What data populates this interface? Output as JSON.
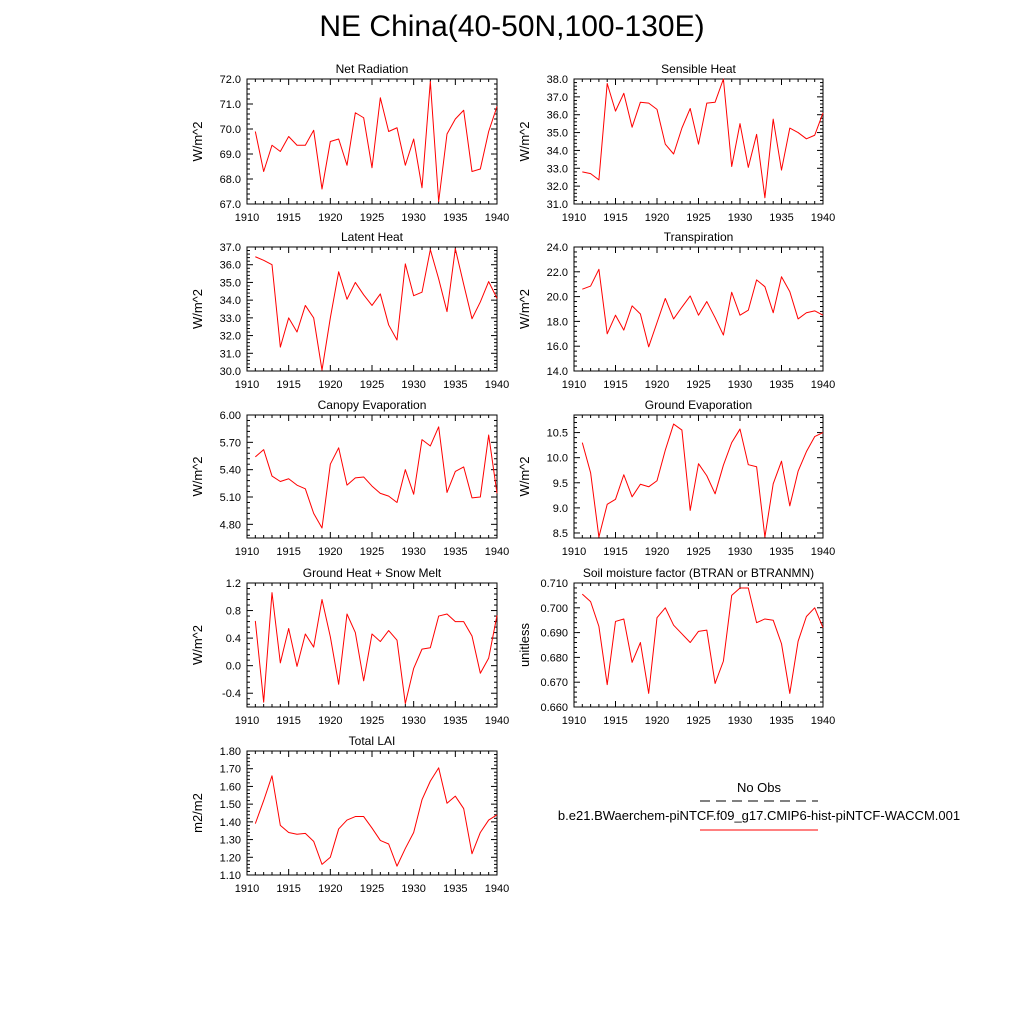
{
  "title": "NE China(40-50N,100-130E)",
  "colors": {
    "series": "#ff0000",
    "obs": "#000000"
  },
  "legend": {
    "obs_label": "No Obs",
    "case_label": "b.e21.BWaerchem-piNTCF.f09_g17.CMIP6-hist-piNTCF-WACCM.001"
  },
  "chart_data": [
    {
      "type": "line",
      "title": "Net Radiation",
      "ylabel": "W/m^2",
      "xlim": [
        1910,
        1940
      ],
      "ylim": [
        67.0,
        72.0
      ],
      "xticks": [
        "1910",
        "1915",
        "1920",
        "1925",
        "1930",
        "1935",
        "1940"
      ],
      "yticks": [
        "67.0",
        "68.0",
        "69.0",
        "70.0",
        "71.0",
        "72.0"
      ],
      "x": [
        1911,
        1912,
        1913,
        1914,
        1915,
        1916,
        1917,
        1918,
        1919,
        1920,
        1921,
        1922,
        1923,
        1924,
        1925,
        1926,
        1927,
        1928,
        1929,
        1930,
        1931,
        1932,
        1933,
        1934,
        1935,
        1936,
        1937,
        1938,
        1939,
        1940
      ],
      "series": [
        {
          "values": [
            69.9,
            68.3,
            69.35,
            69.1,
            69.7,
            69.35,
            69.35,
            69.95,
            67.6,
            69.5,
            69.6,
            68.55,
            70.65,
            70.45,
            68.45,
            71.25,
            69.9,
            70.05,
            68.55,
            69.6,
            67.65,
            71.9,
            67.1,
            69.8,
            70.4,
            70.75,
            68.3,
            68.4,
            69.9,
            70.9
          ]
        }
      ]
    },
    {
      "type": "line",
      "title": "Sensible Heat",
      "ylabel": "W/m^2",
      "xlim": [
        1910,
        1940
      ],
      "ylim": [
        31.0,
        38.0
      ],
      "xticks": [
        "1910",
        "1915",
        "1920",
        "1925",
        "1930",
        "1935",
        "1940"
      ],
      "yticks": [
        "31.0",
        "32.0",
        "33.0",
        "34.0",
        "35.0",
        "36.0",
        "37.0",
        "38.0"
      ],
      "x": [
        1911,
        1912,
        1913,
        1914,
        1915,
        1916,
        1917,
        1918,
        1919,
        1920,
        1921,
        1922,
        1923,
        1924,
        1925,
        1926,
        1927,
        1928,
        1929,
        1930,
        1931,
        1932,
        1933,
        1934,
        1935,
        1936,
        1937,
        1938,
        1939,
        1940
      ],
      "series": [
        {
          "values": [
            32.8,
            32.7,
            32.35,
            37.75,
            36.2,
            37.2,
            35.3,
            36.7,
            36.65,
            36.3,
            34.35,
            33.8,
            35.25,
            36.35,
            34.35,
            36.65,
            36.7,
            38.0,
            33.1,
            35.5,
            33.05,
            34.9,
            31.35,
            35.75,
            32.9,
            35.25,
            35.0,
            34.65,
            34.85,
            36.1
          ]
        }
      ]
    },
    {
      "type": "line",
      "title": "Latent Heat",
      "ylabel": "W/m^2",
      "xlim": [
        1910,
        1940
      ],
      "ylim": [
        30.0,
        37.0
      ],
      "xticks": [
        "1910",
        "1915",
        "1920",
        "1925",
        "1930",
        "1935",
        "1940"
      ],
      "yticks": [
        "30.0",
        "31.0",
        "32.0",
        "33.0",
        "34.0",
        "35.0",
        "36.0",
        "37.0"
      ],
      "x": [
        1911,
        1912,
        1913,
        1914,
        1915,
        1916,
        1917,
        1918,
        1919,
        1920,
        1921,
        1922,
        1923,
        1924,
        1925,
        1926,
        1927,
        1928,
        1929,
        1930,
        1931,
        1932,
        1933,
        1934,
        1935,
        1936,
        1937,
        1938,
        1939,
        1940
      ],
      "series": [
        {
          "values": [
            36.45,
            36.25,
            36.0,
            31.35,
            33.0,
            32.2,
            33.7,
            33.0,
            30.05,
            33.0,
            35.6,
            34.05,
            35.0,
            34.3,
            33.7,
            34.35,
            32.6,
            31.75,
            36.05,
            34.25,
            34.45,
            36.85,
            35.2,
            33.35,
            36.9,
            34.9,
            32.95,
            33.9,
            35.05,
            34.1
          ]
        }
      ]
    },
    {
      "type": "line",
      "title": "Transpiration",
      "ylabel": "W/m^2",
      "xlim": [
        1910,
        1940
      ],
      "ylim": [
        14.0,
        24.0
      ],
      "xticks": [
        "1910",
        "1915",
        "1920",
        "1925",
        "1930",
        "1935",
        "1940"
      ],
      "yticks": [
        "14.0",
        "16.0",
        "18.0",
        "20.0",
        "22.0",
        "24.0"
      ],
      "x": [
        1911,
        1912,
        1913,
        1914,
        1915,
        1916,
        1917,
        1918,
        1919,
        1920,
        1921,
        1922,
        1923,
        1924,
        1925,
        1926,
        1927,
        1928,
        1929,
        1930,
        1931,
        1932,
        1933,
        1934,
        1935,
        1936,
        1937,
        1938,
        1939,
        1940
      ],
      "series": [
        {
          "values": [
            20.6,
            20.85,
            22.2,
            17.0,
            18.5,
            17.3,
            19.25,
            18.6,
            15.95,
            17.9,
            19.85,
            18.2,
            19.15,
            20.05,
            18.5,
            19.6,
            18.3,
            16.9,
            20.35,
            18.5,
            18.9,
            21.35,
            20.8,
            18.7,
            21.6,
            20.4,
            18.2,
            18.7,
            18.85,
            18.5
          ]
        }
      ]
    },
    {
      "type": "line",
      "title": "Canopy Evaporation",
      "ylabel": "W/m^2",
      "xlim": [
        1910,
        1940
      ],
      "ylim": [
        4.65,
        6.0
      ],
      "xticks": [
        "1910",
        "1915",
        "1920",
        "1925",
        "1930",
        "1935",
        "1940"
      ],
      "yticks": [
        "4.80",
        "5.10",
        "5.40",
        "5.70",
        "6.00"
      ],
      "x": [
        1911,
        1912,
        1913,
        1914,
        1915,
        1916,
        1917,
        1918,
        1919,
        1920,
        1921,
        1922,
        1923,
        1924,
        1925,
        1926,
        1927,
        1928,
        1929,
        1930,
        1931,
        1932,
        1933,
        1934,
        1935,
        1936,
        1937,
        1938,
        1939,
        1940
      ],
      "series": [
        {
          "values": [
            5.54,
            5.62,
            5.33,
            5.27,
            5.3,
            5.23,
            5.19,
            4.92,
            4.76,
            5.46,
            5.64,
            5.23,
            5.31,
            5.32,
            5.22,
            5.14,
            5.11,
            5.04,
            5.4,
            5.13,
            5.73,
            5.66,
            5.87,
            5.15,
            5.38,
            5.43,
            5.09,
            5.1,
            5.78,
            5.14
          ]
        }
      ]
    },
    {
      "type": "line",
      "title": "Ground Evaporation",
      "ylabel": "W/m^2",
      "xlim": [
        1910,
        1940
      ],
      "ylim": [
        8.4,
        10.85
      ],
      "xticks": [
        "1910",
        "1915",
        "1920",
        "1925",
        "1930",
        "1935",
        "1940"
      ],
      "yticks": [
        "8.5",
        "9.0",
        "9.5",
        "10.0",
        "10.5"
      ],
      "x": [
        1911,
        1912,
        1913,
        1914,
        1915,
        1916,
        1917,
        1918,
        1919,
        1920,
        1921,
        1922,
        1923,
        1924,
        1925,
        1926,
        1927,
        1928,
        1929,
        1930,
        1931,
        1932,
        1933,
        1934,
        1935,
        1936,
        1937,
        1938,
        1939,
        1940
      ],
      "series": [
        {
          "values": [
            10.3,
            9.7,
            8.42,
            9.07,
            9.17,
            9.66,
            9.22,
            9.47,
            9.42,
            9.54,
            10.15,
            10.67,
            10.55,
            8.95,
            9.88,
            9.64,
            9.28,
            9.85,
            10.3,
            10.57,
            9.86,
            9.82,
            8.42,
            9.48,
            9.93,
            9.04,
            9.73,
            10.12,
            10.42,
            10.5
          ]
        }
      ]
    },
    {
      "type": "line",
      "title": "Ground Heat + Snow Melt",
      "ylabel": "W/m^2",
      "xlim": [
        1910,
        1940
      ],
      "ylim": [
        -0.6,
        1.2
      ],
      "xticks": [
        "1910",
        "1915",
        "1920",
        "1925",
        "1930",
        "1935",
        "1940"
      ],
      "yticks": [
        "-0.4",
        "0.0",
        "0.4",
        "0.8",
        "1.2"
      ],
      "x": [
        1911,
        1912,
        1913,
        1914,
        1915,
        1916,
        1917,
        1918,
        1919,
        1920,
        1921,
        1922,
        1923,
        1924,
        1925,
        1926,
        1927,
        1928,
        1929,
        1930,
        1931,
        1932,
        1933,
        1934,
        1935,
        1936,
        1937,
        1938,
        1939,
        1940
      ],
      "series": [
        {
          "values": [
            0.65,
            -0.53,
            1.06,
            0.04,
            0.54,
            -0.01,
            0.46,
            0.27,
            0.96,
            0.42,
            -0.27,
            0.75,
            0.48,
            -0.22,
            0.46,
            0.35,
            0.51,
            0.37,
            -0.55,
            -0.04,
            0.24,
            0.26,
            0.72,
            0.75,
            0.64,
            0.64,
            0.43,
            -0.11,
            0.11,
            0.73
          ]
        }
      ]
    },
    {
      "type": "line",
      "title": "Soil moisture factor (BTRAN or BTRANMN)",
      "ylabel": "unitless",
      "xlim": [
        1910,
        1940
      ],
      "ylim": [
        0.66,
        0.71
      ],
      "xticks": [
        "1910",
        "1915",
        "1920",
        "1925",
        "1930",
        "1935",
        "1940"
      ],
      "yticks": [
        "0.660",
        "0.670",
        "0.680",
        "0.690",
        "0.700",
        "0.710"
      ],
      "x": [
        1911,
        1912,
        1913,
        1914,
        1915,
        1916,
        1917,
        1918,
        1919,
        1920,
        1921,
        1922,
        1923,
        1924,
        1925,
        1926,
        1927,
        1928,
        1929,
        1930,
        1931,
        1932,
        1933,
        1934,
        1935,
        1936,
        1937,
        1938,
        1939,
        1940
      ],
      "series": [
        {
          "values": [
            0.7055,
            0.7025,
            0.6925,
            0.669,
            0.6945,
            0.6955,
            0.678,
            0.686,
            0.6655,
            0.696,
            0.7,
            0.693,
            0.6895,
            0.686,
            0.6905,
            0.691,
            0.6695,
            0.6785,
            0.705,
            0.708,
            0.708,
            0.694,
            0.6955,
            0.695,
            0.6855,
            0.6655,
            0.6865,
            0.6965,
            0.7,
            0.692
          ]
        }
      ]
    },
    {
      "type": "line",
      "title": "Total LAI",
      "ylabel": "m2/m2",
      "xlim": [
        1910,
        1940
      ],
      "ylim": [
        1.1,
        1.8
      ],
      "xticks": [
        "1910",
        "1915",
        "1920",
        "1925",
        "1930",
        "1935",
        "1940"
      ],
      "yticks": [
        "1.10",
        "1.20",
        "1.30",
        "1.40",
        "1.50",
        "1.60",
        "1.70",
        "1.80"
      ],
      "x": [
        1911,
        1912,
        1913,
        1914,
        1915,
        1916,
        1917,
        1918,
        1919,
        1920,
        1921,
        1922,
        1923,
        1924,
        1925,
        1926,
        1927,
        1928,
        1929,
        1930,
        1931,
        1932,
        1933,
        1934,
        1935,
        1936,
        1937,
        1938,
        1939,
        1940
      ],
      "series": [
        {
          "values": [
            1.39,
            1.52,
            1.66,
            1.38,
            1.34,
            1.33,
            1.335,
            1.29,
            1.16,
            1.2,
            1.36,
            1.41,
            1.43,
            1.43,
            1.365,
            1.295,
            1.275,
            1.15,
            1.25,
            1.34,
            1.525,
            1.63,
            1.705,
            1.505,
            1.545,
            1.475,
            1.22,
            1.34,
            1.41,
            1.44
          ]
        }
      ]
    }
  ]
}
